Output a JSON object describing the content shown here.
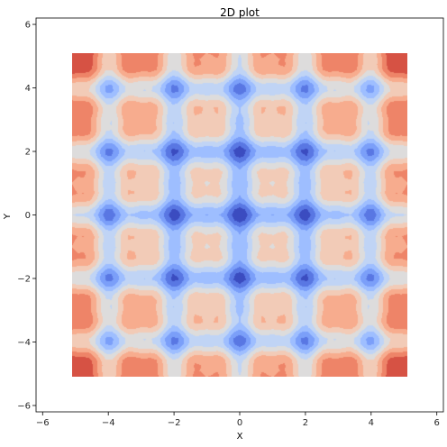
{
  "chart_data": {
    "type": "heatmap",
    "subtype": "filled-contour",
    "title": "2D plot",
    "xlabel": "X",
    "ylabel": "Y",
    "xlim": [
      -6.2,
      6.2
    ],
    "ylim": [
      -6.2,
      6.2
    ],
    "x_ticks": [
      -6,
      -4,
      -2,
      0,
      2,
      4,
      6
    ],
    "y_ticks": [
      -6,
      -4,
      -2,
      0,
      2,
      4,
      6
    ],
    "x_tick_labels": [
      "−6",
      "−4",
      "−2",
      "0",
      "2",
      "4",
      "6"
    ],
    "y_tick_labels": [
      "−6",
      "−4",
      "−2",
      "0",
      "2",
      "4",
      "6"
    ],
    "data_extent": {
      "x": [
        -5.1,
        5.1
      ],
      "y": [
        -5.1,
        5.1
      ]
    },
    "grid": false,
    "colormap": "coolwarm",
    "levels": 8,
    "field": {
      "nx": 61,
      "ny": 61,
      "approximation": "z = (x^2 + y^2)/52 - 0.35*(cos(pi*x) + cos(pi*y)) - 0.15*(cos(2*pi*x) + cos(2*pi*y))"
    },
    "colors": [
      "#3b4cc0",
      "#5977e3",
      "#7b9ff9",
      "#9ebeff",
      "#c0d4f5",
      "#dddcdc",
      "#f2cbb7",
      "#f7ac8e",
      "#ee8468",
      "#d65244"
    ]
  }
}
